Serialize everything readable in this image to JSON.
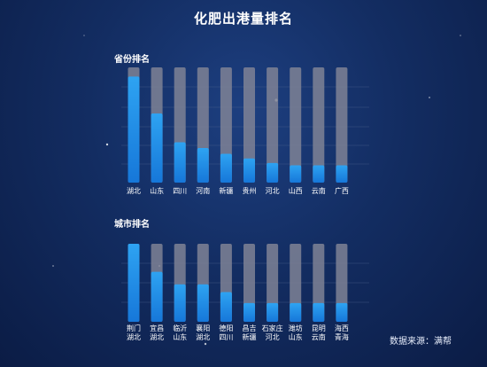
{
  "title": "化肥出港量排名",
  "source": "数据来源：满帮",
  "chart_data": [
    {
      "type": "bar",
      "title": "省份排名",
      "categories": [
        [
          "湖北"
        ],
        [
          "山东"
        ],
        [
          "四川"
        ],
        [
          "河南"
        ],
        [
          "新疆"
        ],
        [
          "贵州"
        ],
        [
          "河北"
        ],
        [
          "山西"
        ],
        [
          "云南"
        ],
        [
          "广西"
        ]
      ],
      "values": [
        92,
        60,
        35,
        30,
        25,
        21,
        17,
        15,
        15,
        15
      ],
      "ylim": [
        0,
        100
      ],
      "grid": true
    },
    {
      "type": "bar",
      "title": "城市排名",
      "categories": [
        [
          "荆门",
          "湖北"
        ],
        [
          "宜昌",
          "湖北"
        ],
        [
          "临沂",
          "山东"
        ],
        [
          "襄阳",
          "湖北"
        ],
        [
          "德阳",
          "四川"
        ],
        [
          "昌吉",
          "新疆"
        ],
        [
          "石家庄",
          "河北"
        ],
        [
          "潍坊",
          "山东"
        ],
        [
          "昆明",
          "云南"
        ],
        [
          "海西",
          "青海"
        ]
      ],
      "values": [
        100,
        64,
        48,
        48,
        38,
        24,
        24,
        24,
        24,
        24
      ],
      "ylim": [
        0,
        100
      ],
      "grid": true
    }
  ],
  "colors": {
    "bar_fill_top": "#2ea3f2",
    "bar_fill_bottom": "#1677d9",
    "bar_track": "#7f8395",
    "grid": "#4f6590"
  }
}
